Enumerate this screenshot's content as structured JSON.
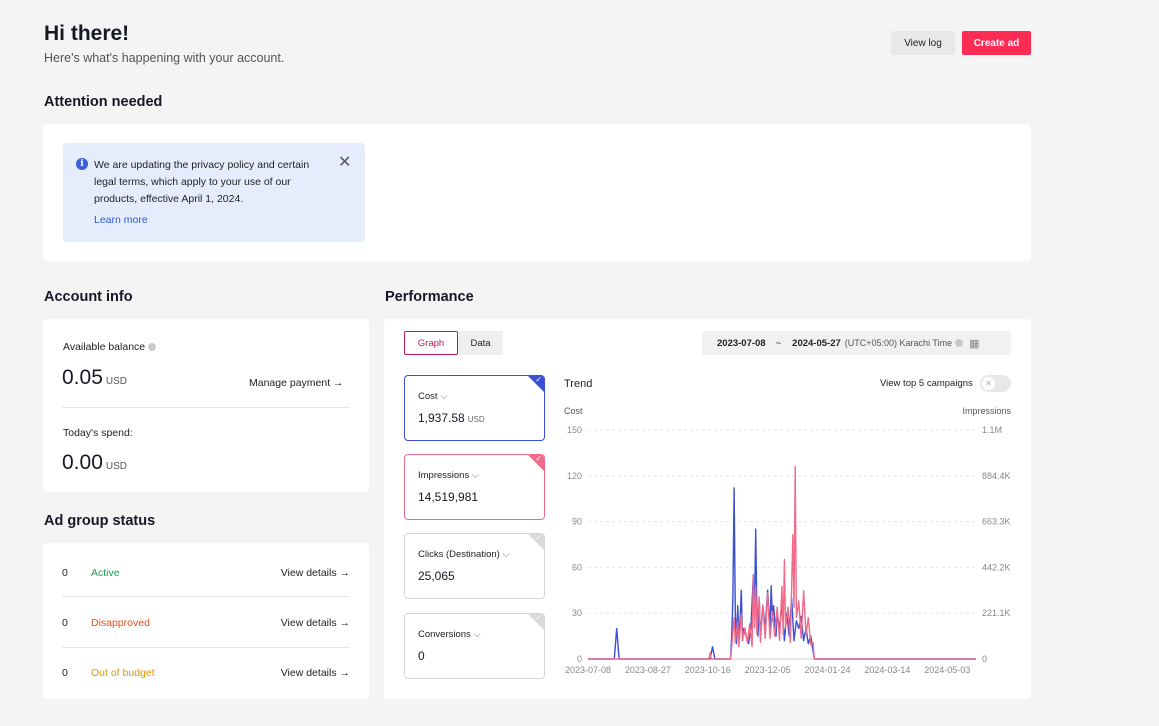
{
  "header": {
    "greeting": "Hi there!",
    "subtitle": "Here's what's happening with your account.",
    "view_log": "View log",
    "create_ad": "Create ad"
  },
  "attention": {
    "title": "Attention needed",
    "notice_text": "We are updating the privacy policy and certain legal terms, which apply to your use of our products, effective April 1, 2024.",
    "learn_more": "Learn more"
  },
  "account": {
    "title": "Account info",
    "balance_label": "Available balance",
    "balance_value": "0.05",
    "currency": "USD",
    "manage_payment": "Manage payment →",
    "spend_label": "Today's spend:",
    "spend_value": "0.00"
  },
  "adgroup": {
    "title": "Ad group status",
    "rows": [
      {
        "count": "0",
        "status": "Active",
        "color": "#1a9c55",
        "link": "View details →"
      },
      {
        "count": "0",
        "status": "Disapproved",
        "color": "#e0501b",
        "link": "View details →"
      },
      {
        "count": "0",
        "status": "Out of budget",
        "color": "#d99a00",
        "link": "View details →"
      }
    ]
  },
  "performance": {
    "title": "Performance",
    "tab_graph": "Graph",
    "tab_data": "Data",
    "date_start": "2023-07-08",
    "date_sep": "~",
    "date_end": "2024-05-27",
    "timezone": "(UTC+05:00) Karachi Time",
    "metrics": [
      {
        "label": "Cost",
        "value": "1,937.58",
        "unit": "USD",
        "color": "#3a4fd6"
      },
      {
        "label": "Impressions",
        "value": "14,519,981",
        "unit": "",
        "color": "#f06b8a"
      },
      {
        "label": "Clicks (Destination)",
        "value": "25,065",
        "unit": "",
        "color": "#d6d6d6"
      },
      {
        "label": "Conversions",
        "value": "0",
        "unit": "",
        "color": "#d6d6d6"
      }
    ],
    "trend_label": "Trend",
    "top5_label": "View top 5 campaigns"
  },
  "colors": {
    "accent": "#fe2c55",
    "cost": "#3a4fd6",
    "impressions": "#f06b8a"
  },
  "chart_data": {
    "type": "line",
    "title": "Trend",
    "ylabel_left": "Cost",
    "ylabel_right": "Impressions",
    "y_left_ticks": [
      "150",
      "120",
      "90",
      "60",
      "30",
      "0"
    ],
    "y_right_ticks": [
      "1.1M",
      "884.4K",
      "663.3K",
      "442.2K",
      "221.1K",
      "0"
    ],
    "x_ticks": [
      "2023-07-08",
      "2023-08-27",
      "2023-10-16",
      "2023-12-05",
      "2024-01-24",
      "2024-03-14",
      "2024-05-03"
    ],
    "x_range": [
      "2023-07-08",
      "2024-05-27"
    ],
    "ylim_left": [
      0,
      150
    ],
    "ylim_right": [
      0,
      1105500
    ],
    "series": [
      {
        "name": "Cost",
        "axis": "left",
        "points": [
          [
            "2023-07-08",
            0
          ],
          [
            "2023-07-30",
            0
          ],
          [
            "2023-08-01",
            20
          ],
          [
            "2023-08-03",
            0
          ],
          [
            "2023-10-18",
            0
          ],
          [
            "2023-10-20",
            8
          ],
          [
            "2023-10-22",
            0
          ],
          [
            "2023-11-04",
            0
          ],
          [
            "2023-11-05",
            15
          ],
          [
            "2023-11-06",
            40
          ],
          [
            "2023-11-07",
            112
          ],
          [
            "2023-11-08",
            30
          ],
          [
            "2023-11-09",
            10
          ],
          [
            "2023-11-10",
            35
          ],
          [
            "2023-11-11",
            15
          ],
          [
            "2023-11-12",
            25
          ],
          [
            "2023-11-13",
            45
          ],
          [
            "2023-11-14",
            12
          ],
          [
            "2023-11-15",
            20
          ],
          [
            "2023-11-17",
            15
          ],
          [
            "2023-11-19",
            10
          ],
          [
            "2023-11-21",
            20
          ],
          [
            "2023-11-23",
            55
          ],
          [
            "2023-11-24",
            30
          ],
          [
            "2023-11-25",
            85
          ],
          [
            "2023-11-26",
            30
          ],
          [
            "2023-11-27",
            15
          ],
          [
            "2023-11-28",
            40
          ],
          [
            "2023-11-29",
            15
          ],
          [
            "2023-12-01",
            35
          ],
          [
            "2023-12-03",
            20
          ],
          [
            "2023-12-05",
            45
          ],
          [
            "2023-12-07",
            20
          ],
          [
            "2023-12-08",
            48
          ],
          [
            "2023-12-09",
            25
          ],
          [
            "2023-12-10",
            35
          ],
          [
            "2023-12-12",
            15
          ],
          [
            "2023-12-13",
            30
          ],
          [
            "2023-12-15",
            20
          ],
          [
            "2023-12-17",
            35
          ],
          [
            "2023-12-19",
            12
          ],
          [
            "2023-12-21",
            30
          ],
          [
            "2023-12-23",
            15
          ],
          [
            "2023-12-25",
            40
          ],
          [
            "2023-12-27",
            12
          ],
          [
            "2023-12-29",
            25
          ],
          [
            "2023-12-31",
            20
          ],
          [
            "2024-01-02",
            28
          ],
          [
            "2024-01-04",
            12
          ],
          [
            "2024-01-06",
            20
          ],
          [
            "2024-01-08",
            10
          ],
          [
            "2024-01-10",
            15
          ],
          [
            "2024-01-12",
            5
          ],
          [
            "2024-01-13",
            0
          ],
          [
            "2024-05-27",
            0
          ]
        ]
      },
      {
        "name": "Impressions",
        "axis": "right",
        "points": [
          [
            "2023-07-08",
            0
          ],
          [
            "2023-10-17",
            0
          ],
          [
            "2023-10-18",
            30000
          ],
          [
            "2023-10-19",
            0
          ],
          [
            "2023-11-04",
            0
          ],
          [
            "2023-11-05",
            60000
          ],
          [
            "2023-11-07",
            200000
          ],
          [
            "2023-11-08",
            80000
          ],
          [
            "2023-11-10",
            180000
          ],
          [
            "2023-11-11",
            60000
          ],
          [
            "2023-11-13",
            220000
          ],
          [
            "2023-11-14",
            90000
          ],
          [
            "2023-11-16",
            150000
          ],
          [
            "2023-11-18",
            80000
          ],
          [
            "2023-11-20",
            170000
          ],
          [
            "2023-11-22",
            60000
          ],
          [
            "2023-11-23",
            400000
          ],
          [
            "2023-11-24",
            150000
          ],
          [
            "2023-11-25",
            350000
          ],
          [
            "2023-11-26",
            120000
          ],
          [
            "2023-11-28",
            300000
          ],
          [
            "2023-11-29",
            80000
          ],
          [
            "2023-12-01",
            260000
          ],
          [
            "2023-12-03",
            100000
          ],
          [
            "2023-12-05",
            320000
          ],
          [
            "2023-12-07",
            100000
          ],
          [
            "2023-12-09",
            230000
          ],
          [
            "2023-12-11",
            110000
          ],
          [
            "2023-12-13",
            250000
          ],
          [
            "2023-12-15",
            90000
          ],
          [
            "2023-12-17",
            350000
          ],
          [
            "2023-12-18",
            120000
          ],
          [
            "2023-12-19",
            480000
          ],
          [
            "2023-12-20",
            150000
          ],
          [
            "2023-12-22",
            250000
          ],
          [
            "2023-12-24",
            80000
          ],
          [
            "2023-12-26",
            600000
          ],
          [
            "2023-12-27",
            250000
          ],
          [
            "2023-12-28",
            930000
          ],
          [
            "2023-12-29",
            200000
          ],
          [
            "2023-12-31",
            280000
          ],
          [
            "2024-01-02",
            100000
          ],
          [
            "2024-01-04",
            330000
          ],
          [
            "2024-01-06",
            120000
          ],
          [
            "2024-01-08",
            200000
          ],
          [
            "2024-01-10",
            70000
          ],
          [
            "2024-01-12",
            80000
          ],
          [
            "2024-01-13",
            0
          ],
          [
            "2024-05-27",
            0
          ]
        ]
      }
    ]
  }
}
